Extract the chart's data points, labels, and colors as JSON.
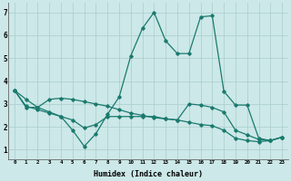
{
  "xlabel": "Humidex (Indice chaleur)",
  "bg_color": "#cce8e8",
  "line_color": "#1a7a6e",
  "ylim": [
    0.6,
    7.4
  ],
  "xlim": [
    -0.5,
    23.5
  ],
  "line1_x": [
    0,
    1,
    2,
    3,
    4,
    5,
    6,
    7,
    8,
    9,
    10,
    11,
    12,
    13,
    14,
    15,
    16,
    17,
    18,
    19,
    20,
    21,
    22,
    23
  ],
  "line1_y": [
    3.6,
    3.2,
    2.85,
    3.2,
    3.25,
    3.2,
    3.1,
    3.0,
    2.9,
    2.75,
    2.6,
    2.5,
    2.4,
    2.35,
    2.3,
    2.2,
    2.1,
    2.05,
    1.85,
    1.5,
    1.4,
    1.35,
    1.4,
    1.55
  ],
  "line2_x": [
    0,
    1,
    2,
    3,
    4,
    5,
    6,
    7,
    8,
    9,
    10,
    11,
    12,
    13,
    14,
    15,
    16,
    17,
    18,
    19,
    20,
    21,
    22,
    23
  ],
  "line2_y": [
    3.6,
    2.85,
    2.85,
    2.65,
    2.45,
    1.85,
    1.15,
    1.7,
    2.55,
    3.3,
    5.1,
    6.3,
    7.0,
    5.75,
    5.2,
    5.2,
    6.8,
    6.85,
    3.55,
    2.95,
    2.95,
    1.5,
    1.4,
    1.55
  ],
  "line3_x": [
    0,
    1,
    2,
    3,
    4,
    5,
    6,
    7,
    8,
    9,
    10,
    11,
    12,
    13,
    14,
    15,
    16,
    17,
    18,
    19,
    20,
    21,
    22,
    23
  ],
  "line3_y": [
    3.6,
    2.9,
    2.75,
    2.6,
    2.45,
    2.3,
    1.95,
    2.1,
    2.45,
    2.45,
    2.45,
    2.45,
    2.45,
    2.35,
    2.3,
    3.0,
    2.95,
    2.85,
    2.65,
    1.85,
    1.65,
    1.45,
    1.4,
    1.55
  ],
  "yticks": [
    1,
    2,
    3,
    4,
    5,
    6,
    7
  ],
  "xticks": [
    0,
    1,
    2,
    3,
    4,
    5,
    6,
    7,
    8,
    9,
    10,
    11,
    12,
    13,
    14,
    15,
    16,
    17,
    18,
    19,
    20,
    21,
    22,
    23
  ]
}
